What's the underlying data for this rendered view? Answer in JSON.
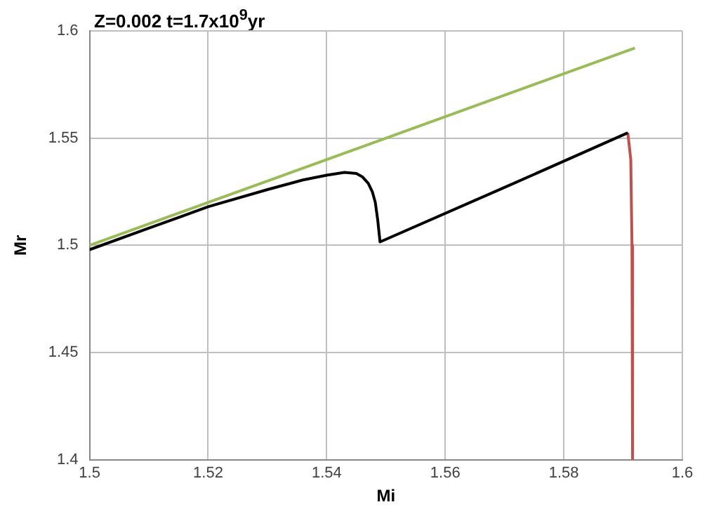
{
  "chart_data": {
    "type": "line",
    "title": "Z=0.002 t=1.7x10$^{9}$yr",
    "xlabel": "Mi",
    "ylabel": "Mr",
    "xlim": [
      1.5,
      1.6
    ],
    "xticks": [
      1.5,
      1.52,
      1.54,
      1.56,
      1.58,
      1.6
    ],
    "ylim": [
      1.4,
      1.6
    ],
    "yticks": [
      1.4,
      1.45,
      1.5,
      1.55,
      1.6
    ],
    "grid": true,
    "legend": false,
    "marker": "none",
    "line_style": "solid",
    "series": [
      {
        "color": "#9bbb59",
        "x": [
          1.5,
          1.592
        ],
        "values": [
          1.5,
          1.592
        ]
      },
      {
        "color": "#000000",
        "x": [
          1.5,
          1.51,
          1.52,
          1.53,
          1.536,
          1.54,
          1.543,
          1.545,
          1.546,
          1.547,
          1.5477,
          1.5482,
          1.5486,
          1.549,
          1.57,
          1.5908
        ],
        "values": [
          1.498,
          1.508,
          1.518,
          1.526,
          1.5305,
          1.5327,
          1.534,
          1.5335,
          1.532,
          1.529,
          1.525,
          1.52,
          1.512,
          1.5016,
          1.527,
          1.5525
        ]
      },
      {
        "color": "#c0504d",
        "x": [
          1.5908,
          1.5913,
          1.5915,
          1.5916
        ],
        "values": [
          1.5525,
          1.54,
          1.5,
          1.4
        ]
      }
    ]
  }
}
